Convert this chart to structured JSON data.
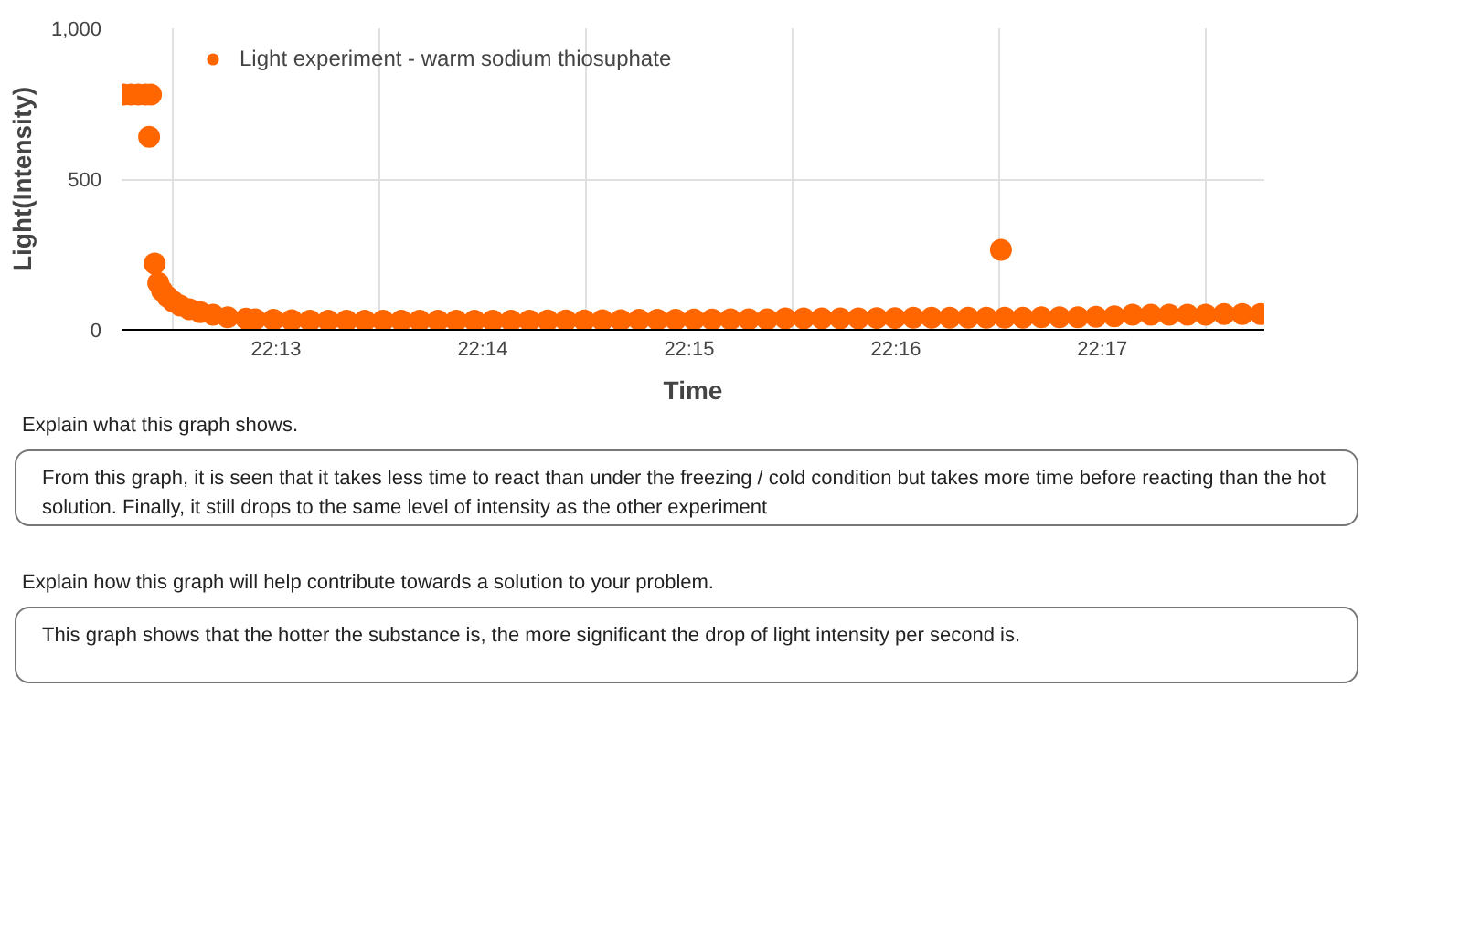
{
  "chart_data": {
    "type": "scatter",
    "xlabel": "Time",
    "ylabel": "Light(Intensity)",
    "x": [
      22.20436,
      22.20495,
      22.20554,
      22.20613,
      22.20657,
      22.20642,
      22.20687,
      22.20716,
      22.20746,
      22.2079,
      22.20834,
      22.20893,
      22.20967,
      22.21055,
      22.21158,
      22.21276,
      22.21424,
      22.21498,
      22.21645,
      22.21793,
      22.2194,
      22.22088,
      22.22235,
      22.22383,
      22.2253,
      22.22678,
      22.22825,
      22.22973,
      22.2312,
      22.23268,
      22.23415,
      22.23563,
      22.2371,
      22.23858,
      22.24005,
      22.24153,
      22.243,
      22.24448,
      22.24595,
      22.24743,
      22.2489,
      22.25038,
      22.25185,
      22.25333,
      22.2548,
      22.25628,
      22.25775,
      22.25923,
      22.2607,
      22.26218,
      22.26365,
      22.26513,
      22.2666,
      22.26808,
      22.26955,
      22.27102,
      22.2725,
      22.27397,
      22.27515,
      22.27545,
      22.27692,
      22.2784,
      22.27987,
      22.28135,
      22.28282,
      22.2843,
      22.28577,
      22.28725,
      22.28872,
      22.2902,
      22.29167,
      22.29315,
      22.29462,
      22.2961
    ],
    "series": [
      {
        "name": "Light experiment - warm sodium thiosuphate",
        "color": "#ff6600",
        "values": [
          780,
          780,
          780,
          780,
          780,
          640,
          220,
          155,
          130,
          110,
          95,
          80,
          68,
          58,
          50,
          42,
          37,
          35,
          33,
          32,
          30,
          30,
          30,
          30,
          30,
          30,
          30,
          30,
          30,
          30,
          30,
          30,
          30,
          31,
          31,
          31,
          32,
          32,
          33,
          33,
          33,
          34,
          34,
          35,
          35,
          35,
          38,
          38,
          38,
          38,
          38,
          39,
          39,
          40,
          40,
          40,
          40,
          40,
          265,
          40,
          40,
          42,
          42,
          42,
          43,
          45,
          50,
          50,
          50,
          50,
          50,
          52,
          52,
          52
        ]
      }
    ],
    "xlim": [
      22.2042,
      22.2964
    ],
    "ylim": [
      0,
      1000
    ],
    "xticks": [
      {
        "value": 22.20833,
        "label": null
      },
      {
        "value": 22.21667,
        "label": "22:13"
      },
      {
        "value": 22.225,
        "label": null
      },
      {
        "value": 22.23333,
        "label": "22:14"
      },
      {
        "value": 22.24167,
        "label": null
      },
      {
        "value": 22.25,
        "label": "22:15"
      },
      {
        "value": 22.25833,
        "label": null
      },
      {
        "value": 22.26667,
        "label": "22:16"
      },
      {
        "value": 22.275,
        "label": null
      },
      {
        "value": 22.28333,
        "label": "22:17"
      },
      {
        "value": 22.29167,
        "label": null
      }
    ],
    "yticks": [
      0,
      {
        "value": 500,
        "label": "500"
      },
      {
        "value": 1000,
        "label": "1,000"
      }
    ],
    "grid": true,
    "legend": "top",
    "marker": "circle",
    "annotations": [
      "Explain what this graph shows.",
      "From this graph, it is seen that it takes less time to react than under the freezing / cold condition but takes more time before reacting than the hot solution. Finally, it still drops to the same level of intensity as the other experiment",
      "Explain how this graph will help contribute towards a solution to your problem.",
      "This graph shows that the hotter the substance is, the more significant the drop of light intensity per second is."
    ]
  }
}
